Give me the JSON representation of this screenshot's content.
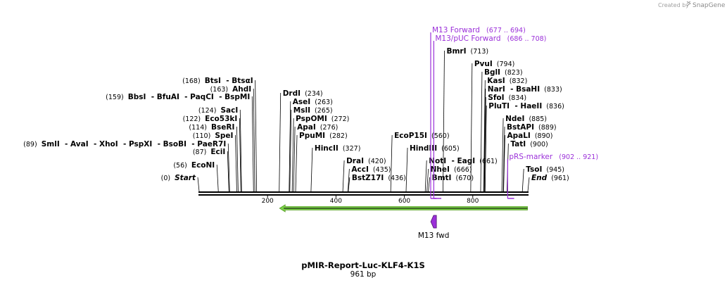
{
  "credit": {
    "prefix": "Created by",
    "brand": "SnapGene"
  },
  "plasmid": {
    "name": "pMIR-Report-Luc-KLF4-K1S",
    "size_label": "961 bp"
  },
  "colors": {
    "primer": "#9b30d9",
    "feature_fill": "#9b30d9",
    "arrow_fill": "#7bd24a",
    "text": "#000000"
  },
  "axis": {
    "total_bp": 961,
    "ticks": [
      {
        "bp": 200,
        "label": "200"
      },
      {
        "bp": 400,
        "label": "400"
      },
      {
        "bp": 600,
        "label": "600"
      },
      {
        "bp": 800,
        "label": "800"
      }
    ]
  },
  "sites": [
    {
      "id": "s-start",
      "names": [
        "Start"
      ],
      "pos": "(0)",
      "bp": 0,
      "side": "left",
      "italic": true
    },
    {
      "id": "s-econi",
      "names": [
        "EcoNI"
      ],
      "pos": "(56)",
      "bp": 56,
      "side": "left"
    },
    {
      "id": "s-ecii",
      "names": [
        "EciI"
      ],
      "pos": "(87)",
      "bp": 87,
      "side": "left"
    },
    {
      "id": "s-smli",
      "names": [
        "SmlI",
        "AvaI",
        "XhoI",
        "PspXI",
        "BsoBI",
        "PaeR7I"
      ],
      "pos": "(89)",
      "bp": 89,
      "side": "left"
    },
    {
      "id": "s-spei",
      "names": [
        "SpeI"
      ],
      "pos": "(110)",
      "bp": 110,
      "side": "left"
    },
    {
      "id": "s-bseri",
      "names": [
        "BseRI"
      ],
      "pos": "(114)",
      "bp": 114,
      "side": "left"
    },
    {
      "id": "s-eco53ki",
      "names": [
        "Eco53kI"
      ],
      "pos": "(122)",
      "bp": 122,
      "side": "left"
    },
    {
      "id": "s-saci",
      "names": [
        "SacI"
      ],
      "pos": "(124)",
      "bp": 124,
      "side": "left"
    },
    {
      "id": "s-bbsi",
      "names": [
        "BbsI",
        "BfuAI",
        "PaqCI",
        "BspMI"
      ],
      "pos": "(159)",
      "bp": 159,
      "side": "left"
    },
    {
      "id": "s-ahdi",
      "names": [
        "AhdI"
      ],
      "pos": "(163)",
      "bp": 163,
      "side": "left"
    },
    {
      "id": "s-btsi",
      "names": [
        "BtsI",
        "BtsαI"
      ],
      "pos": "(168)",
      "bp": 168,
      "side": "left"
    },
    {
      "id": "s-drdi",
      "names": [
        "DrdI"
      ],
      "pos": "(234)",
      "bp": 234,
      "side": "right"
    },
    {
      "id": "s-asei",
      "names": [
        "AseI"
      ],
      "pos": "(263)",
      "bp": 263,
      "side": "right"
    },
    {
      "id": "s-msli",
      "names": [
        "MslI"
      ],
      "pos": "(265)",
      "bp": 265,
      "side": "right"
    },
    {
      "id": "s-pspomi",
      "names": [
        "PspOMI"
      ],
      "pos": "(272)",
      "bp": 272,
      "side": "right"
    },
    {
      "id": "s-apai",
      "names": [
        "ApaI"
      ],
      "pos": "(276)",
      "bp": 276,
      "side": "right"
    },
    {
      "id": "s-ppumi",
      "names": [
        "PpuMI"
      ],
      "pos": "(282)",
      "bp": 282,
      "side": "right"
    },
    {
      "id": "s-hincii",
      "names": [
        "HincII"
      ],
      "pos": "(327)",
      "bp": 327,
      "side": "right"
    },
    {
      "id": "s-drai",
      "names": [
        "DraI"
      ],
      "pos": "(420)",
      "bp": 420,
      "side": "right"
    },
    {
      "id": "s-acci",
      "names": [
        "AccI"
      ],
      "pos": "(435)",
      "bp": 435,
      "side": "right"
    },
    {
      "id": "s-bstz17i",
      "names": [
        "BstZ17I"
      ],
      "pos": "(436)",
      "bp": 436,
      "side": "right"
    },
    {
      "id": "s-ecop15i",
      "names": [
        "EcoP15I"
      ],
      "pos": "(560)",
      "bp": 560,
      "side": "right"
    },
    {
      "id": "s-hindiii",
      "names": [
        "HindIII"
      ],
      "pos": "(605)",
      "bp": 605,
      "side": "right"
    },
    {
      "id": "s-noti",
      "names": [
        "NotI",
        "EagI"
      ],
      "pos": "(661)",
      "bp": 661,
      "side": "right"
    },
    {
      "id": "s-nhei",
      "names": [
        "NheI"
      ],
      "pos": "(666)",
      "bp": 666,
      "side": "right"
    },
    {
      "id": "s-bmti",
      "names": [
        "BmtI"
      ],
      "pos": "(670)",
      "bp": 670,
      "side": "right"
    },
    {
      "id": "s-bmri",
      "names": [
        "BmrI"
      ],
      "pos": "(713)",
      "bp": 713,
      "side": "right"
    },
    {
      "id": "s-pvui",
      "names": [
        "PvuI"
      ],
      "pos": "(794)",
      "bp": 794,
      "side": "right"
    },
    {
      "id": "s-bgli",
      "names": [
        "BglI"
      ],
      "pos": "(823)",
      "bp": 823,
      "side": "right"
    },
    {
      "id": "s-kasi",
      "names": [
        "KasI"
      ],
      "pos": "(832)",
      "bp": 832,
      "side": "right"
    },
    {
      "id": "s-nari",
      "names": [
        "NarI",
        "BsaHI"
      ],
      "pos": "(833)",
      "bp": 833,
      "side": "right"
    },
    {
      "id": "s-sfoi",
      "names": [
        "SfoI"
      ],
      "pos": "(834)",
      "bp": 834,
      "side": "right"
    },
    {
      "id": "s-pluti",
      "names": [
        "PluTI",
        "HaeII"
      ],
      "pos": "(836)",
      "bp": 836,
      "side": "right"
    },
    {
      "id": "s-ndei",
      "names": [
        "NdeI"
      ],
      "pos": "(885)",
      "bp": 885,
      "side": "right"
    },
    {
      "id": "s-bstapi",
      "names": [
        "BstAPI"
      ],
      "pos": "(889)",
      "bp": 889,
      "side": "right"
    },
    {
      "id": "s-apali",
      "names": [
        "ApaLI"
      ],
      "pos": "(890)",
      "bp": 890,
      "side": "right"
    },
    {
      "id": "s-tati",
      "names": [
        "TatI"
      ],
      "pos": "(900)",
      "bp": 900,
      "side": "right"
    },
    {
      "id": "s-tsoi",
      "names": [
        "TsoI"
      ],
      "pos": "(945)",
      "bp": 945,
      "side": "right"
    },
    {
      "id": "s-end",
      "names": [
        "End"
      ],
      "pos": "(961)",
      "bp": 961,
      "side": "right",
      "italic": true
    }
  ],
  "primers": [
    {
      "id": "p-m13fwd",
      "name": "M13 Forward",
      "range": "(677 .. 694)",
      "start": 677,
      "end": 694
    },
    {
      "id": "p-m13puc",
      "name": "M13/pUC Forward",
      "range": "(686 .. 708)",
      "start": 686,
      "end": 708
    },
    {
      "id": "p-prs",
      "name": "pRS-marker",
      "range": "(902 .. 921)",
      "start": 902,
      "end": 921
    }
  ],
  "features": [
    {
      "id": "f-arrow",
      "label": "",
      "start": 235,
      "end": 960,
      "direction": "reverse"
    },
    {
      "id": "f-m13fwd",
      "label": "M13 fwd",
      "start": 677,
      "end": 694,
      "direction": "reverse"
    }
  ]
}
